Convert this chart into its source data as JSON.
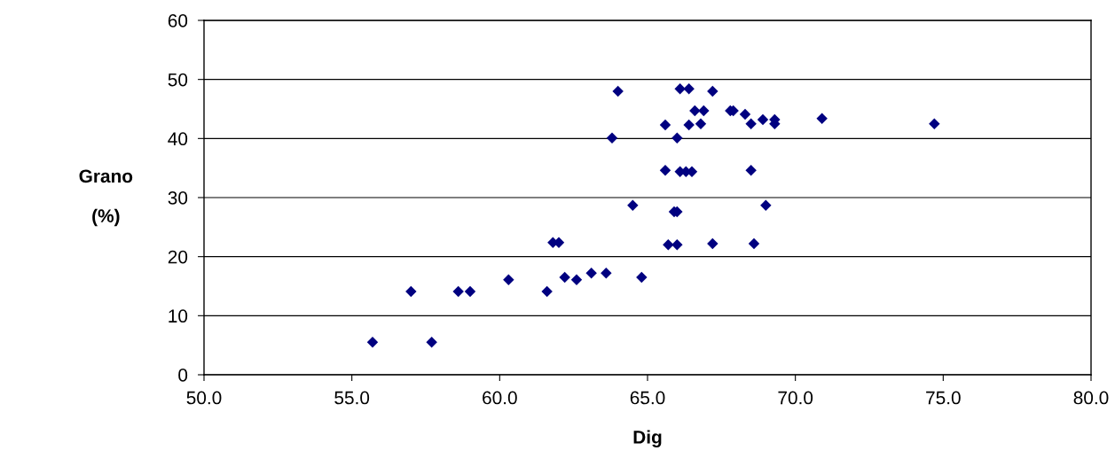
{
  "chart_data": {
    "type": "scatter",
    "xlabel": "Dig",
    "ylabel": "Grano\n\n(%)",
    "xlim": [
      50,
      80
    ],
    "xticks": [
      {
        "value": 50,
        "label": "50.0"
      },
      {
        "value": 55,
        "label": "55.0"
      },
      {
        "value": 60,
        "label": "60.0"
      },
      {
        "value": 65,
        "label": "65.0"
      },
      {
        "value": 70,
        "label": "70.0"
      },
      {
        "value": 75,
        "label": "75.0"
      },
      {
        "value": 80,
        "label": "80.0"
      }
    ],
    "ylim": [
      0,
      60
    ],
    "yticks": [
      0,
      10,
      20,
      30,
      40,
      50,
      60
    ],
    "grid": "y",
    "marker": "diamond",
    "series": [
      {
        "color": "#000080",
        "x": [
          55.7,
          57.7,
          57.0,
          58.6,
          59.0,
          60.3,
          61.6,
          61.8,
          62.0,
          62.2,
          62.6,
          63.1,
          63.6,
          64.8,
          64.0,
          66.1,
          66.4,
          67.2,
          66.6,
          66.9,
          67.8,
          67.9,
          68.3,
          68.5,
          68.9,
          69.3,
          69.3,
          65.6,
          66.4,
          66.8,
          63.8,
          66.0,
          65.6,
          66.1,
          66.3,
          66.5,
          68.5,
          64.5,
          65.9,
          66.0,
          69.0,
          65.7,
          66.0,
          67.2,
          68.6,
          70.9,
          74.7
        ],
        "values": [
          5.5,
          5.5,
          14.1,
          14.1,
          14.1,
          16.1,
          14.1,
          22.4,
          22.4,
          16.5,
          16.1,
          17.2,
          17.2,
          16.5,
          48.0,
          48.4,
          48.4,
          48.0,
          44.7,
          44.7,
          44.7,
          44.7,
          44.1,
          42.5,
          43.2,
          43.2,
          42.5,
          42.3,
          42.3,
          42.5,
          40.1,
          40.1,
          34.6,
          34.4,
          34.4,
          34.4,
          34.6,
          28.7,
          27.6,
          27.6,
          28.7,
          22.0,
          22.0,
          22.2,
          22.2,
          43.4,
          42.5
        ]
      }
    ]
  }
}
